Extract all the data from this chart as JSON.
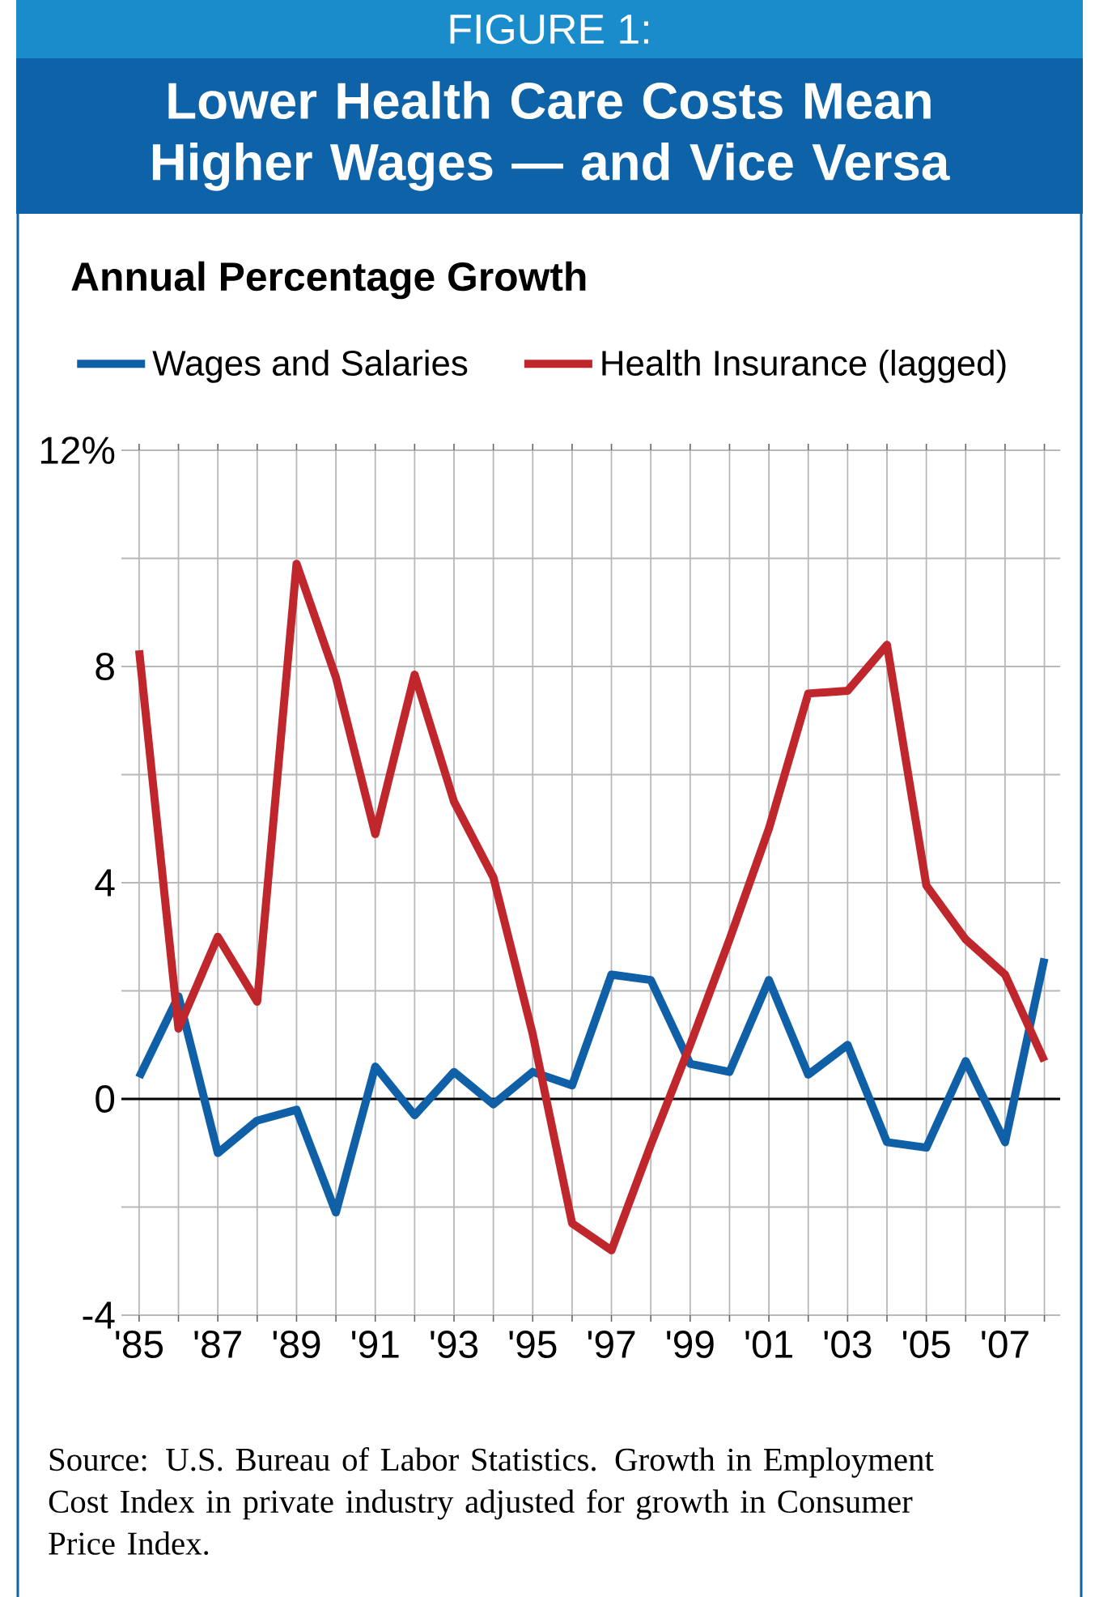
{
  "chart_data": {
    "type": "line",
    "title": "Lower Health Care Costs Mean Higher Wages — and Vice Versa",
    "subtitle": "Annual Percentage Growth",
    "annotations": [
      "FIGURE 1:",
      "Source: U.S. Bureau of Labor Statistics.  Growth in Employment Cost Index in private industry adjusted for growth in Consumer Price Index."
    ],
    "x": [
      1985,
      1986,
      1987,
      1988,
      1989,
      1990,
      1991,
      1992,
      1993,
      1994,
      1995,
      1996,
      1997,
      1998,
      1999,
      2000,
      2001,
      2002,
      2003,
      2004,
      2005,
      2006,
      2007,
      2008
    ],
    "series": [
      {
        "name": "Wages and Salaries",
        "color": "#1060a8",
        "values": [
          0.4,
          1.9,
          -1.0,
          -0.4,
          -0.2,
          -2.1,
          0.6,
          -0.3,
          0.5,
          -0.1,
          0.5,
          0.25,
          2.3,
          2.2,
          0.65,
          0.5,
          2.2,
          0.45,
          1.0,
          -0.8,
          -0.9,
          0.7,
          -0.8,
          2.6
        ]
      },
      {
        "name": "Health Insurance (lagged)",
        "color": "#c0272d",
        "values": [
          8.3,
          1.3,
          3.0,
          1.8,
          9.9,
          7.8,
          4.9,
          7.85,
          5.5,
          4.1,
          1.2,
          -2.3,
          -2.8,
          -0.85,
          1.0,
          2.95,
          5.0,
          7.5,
          7.55,
          8.4,
          3.95,
          2.95,
          2.3,
          0.7
        ]
      }
    ],
    "xlim": [
      1984.55,
      2008.4
    ],
    "ylim": [
      -4,
      12
    ],
    "xticks": [
      {
        "value": 1985,
        "label": "'85"
      },
      {
        "value": 1986,
        "label": null
      },
      {
        "value": 1987,
        "label": "'87"
      },
      {
        "value": 1988,
        "label": null
      },
      {
        "value": 1989,
        "label": "'89"
      },
      {
        "value": 1990,
        "label": null
      },
      {
        "value": 1991,
        "label": "'91"
      },
      {
        "value": 1992,
        "label": null
      },
      {
        "value": 1993,
        "label": "'93"
      },
      {
        "value": 1994,
        "label": null
      },
      {
        "value": 1995,
        "label": "'95"
      },
      {
        "value": 1996,
        "label": null
      },
      {
        "value": 1997,
        "label": "'97"
      },
      {
        "value": 1998,
        "label": null
      },
      {
        "value": 1999,
        "label": "'99"
      },
      {
        "value": 2000,
        "label": null
      },
      {
        "value": 2001,
        "label": "'01"
      },
      {
        "value": 2002,
        "label": null
      },
      {
        "value": 2003,
        "label": "'03"
      },
      {
        "value": 2004,
        "label": null
      },
      {
        "value": 2005,
        "label": "'05"
      },
      {
        "value": 2006,
        "label": null
      },
      {
        "value": 2007,
        "label": "'07"
      },
      {
        "value": 2008,
        "label": null
      }
    ],
    "yticks": [
      -4,
      {
        "value": -2,
        "label": null
      },
      0,
      {
        "value": 2,
        "label": null
      },
      4,
      {
        "value": 6,
        "label": null
      },
      8,
      {
        "value": 10,
        "label": null
      },
      {
        "value": 12,
        "label": "12%"
      }
    ],
    "ref_lines": [
      {
        "axis": "y",
        "value": 0,
        "color": "#000000"
      }
    ],
    "grid": true,
    "legend": "top"
  }
}
